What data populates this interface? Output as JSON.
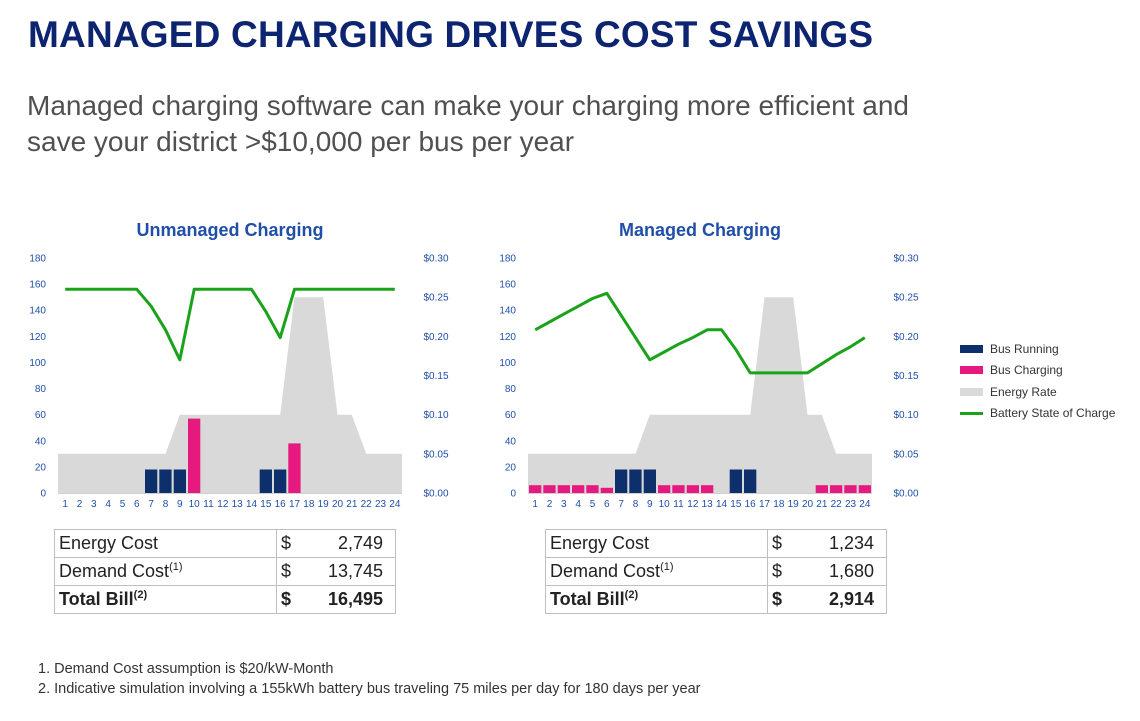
{
  "title": "MANAGED CHARGING DRIVES COST SAVINGS",
  "subtitle": {
    "line1": "Managed charging software can make your charging more efficient and",
    "line2": "save your district >$10,000 per bus per year"
  },
  "legend": [
    {
      "label": "Bus Running",
      "color": "#0d2f6b",
      "kind": "box"
    },
    {
      "label": "Bus Charging",
      "color": "#e6197e",
      "kind": "box"
    },
    {
      "label": "Energy Rate",
      "color": "#d9d9d9",
      "kind": "box"
    },
    {
      "label": "Battery State of Charge",
      "color": "#1aa31a",
      "kind": "line"
    }
  ],
  "chart_data": [
    {
      "type": "bar",
      "title": "Unmanaged Charging",
      "categories": [
        "1",
        "2",
        "3",
        "4",
        "5",
        "6",
        "7",
        "8",
        "9",
        "10",
        "11",
        "12",
        "13",
        "14",
        "15",
        "16",
        "17",
        "18",
        "19",
        "20",
        "21",
        "22",
        "23",
        "24"
      ],
      "y_left": {
        "lim": [
          0,
          180
        ],
        "ticks": [
          "0",
          "20",
          "40",
          "60",
          "80",
          "100",
          "120",
          "140",
          "160",
          "180"
        ]
      },
      "y_right": {
        "lim": [
          0,
          0.3
        ],
        "ticks": [
          "$0.00",
          "$0.05",
          "$0.10",
          "$0.15",
          "$0.20",
          "$0.25",
          "$0.30"
        ]
      },
      "series": [
        {
          "name": "Energy Rate",
          "kind": "area",
          "axis": "left",
          "values": [
            30,
            30,
            30,
            30,
            30,
            30,
            30,
            30,
            60,
            60,
            60,
            60,
            60,
            60,
            60,
            60,
            150,
            150,
            150,
            60,
            60,
            30,
            30,
            30
          ]
        },
        {
          "name": "Bus Running",
          "kind": "bar",
          "axis": "left",
          "values": [
            0,
            0,
            0,
            0,
            0,
            0,
            18,
            18,
            18,
            0,
            0,
            0,
            0,
            0,
            18,
            18,
            0,
            0,
            0,
            0,
            0,
            0,
            0,
            0
          ]
        },
        {
          "name": "Bus Charging",
          "kind": "bar",
          "axis": "left",
          "values": [
            0,
            0,
            0,
            0,
            0,
            0,
            0,
            0,
            0,
            57,
            0,
            0,
            0,
            0,
            0,
            0,
            38,
            0,
            0,
            0,
            0,
            0,
            0,
            0
          ]
        },
        {
          "name": "Battery State of Charge",
          "kind": "line",
          "axis": "left",
          "values": [
            156,
            156,
            156,
            156,
            156,
            156,
            143,
            125,
            102,
            156,
            156,
            156,
            156,
            156,
            139,
            119,
            156,
            156,
            156,
            156,
            156,
            156,
            156,
            156
          ]
        }
      ],
      "grid": false
    },
    {
      "type": "bar",
      "title": "Managed Charging",
      "categories": [
        "1",
        "2",
        "3",
        "4",
        "5",
        "6",
        "7",
        "8",
        "9",
        "10",
        "11",
        "12",
        "13",
        "14",
        "15",
        "16",
        "17",
        "18",
        "19",
        "20",
        "21",
        "22",
        "23",
        "24"
      ],
      "y_left": {
        "lim": [
          0,
          180
        ],
        "ticks": [
          "0",
          "20",
          "40",
          "60",
          "80",
          "100",
          "120",
          "140",
          "160",
          "180"
        ]
      },
      "y_right": {
        "lim": [
          0,
          0.3
        ],
        "ticks": [
          "$0.00",
          "$0.05",
          "$0.10",
          "$0.15",
          "$0.20",
          "$0.25",
          "$0.30"
        ]
      },
      "series": [
        {
          "name": "Energy Rate",
          "kind": "area",
          "axis": "left",
          "values": [
            30,
            30,
            30,
            30,
            30,
            30,
            30,
            30,
            60,
            60,
            60,
            60,
            60,
            60,
            60,
            60,
            150,
            150,
            150,
            60,
            60,
            30,
            30,
            30
          ]
        },
        {
          "name": "Bus Running",
          "kind": "bar",
          "axis": "left",
          "values": [
            0,
            0,
            0,
            0,
            0,
            0,
            18,
            18,
            18,
            0,
            0,
            0,
            0,
            0,
            18,
            18,
            0,
            0,
            0,
            0,
            0,
            0,
            0,
            0
          ]
        },
        {
          "name": "Bus Charging",
          "kind": "bar",
          "axis": "left",
          "values": [
            6,
            6,
            6,
            6,
            6,
            4,
            0,
            0,
            0,
            6,
            6,
            6,
            6,
            0,
            0,
            0,
            0,
            0,
            0,
            0,
            6,
            6,
            6,
            6
          ]
        },
        {
          "name": "Battery State of Charge",
          "kind": "line",
          "axis": "left",
          "values": [
            125,
            131,
            137,
            143,
            149,
            153,
            136,
            119,
            102,
            108,
            114,
            119,
            125,
            125,
            110,
            92,
            92,
            92,
            92,
            92,
            99,
            106,
            112,
            119
          ]
        }
      ],
      "grid": false
    }
  ],
  "tables": {
    "unmanaged": {
      "energy": {
        "label": "Energy Cost",
        "dollar": "$",
        "value": "2,749"
      },
      "demand": {
        "label": "Demand Cost",
        "sup": "(1)",
        "dollar": "$",
        "value": "13,745"
      },
      "total": {
        "label": "Total Bill",
        "sup": "(2)",
        "dollar": "$",
        "value": "16,495"
      }
    },
    "managed": {
      "energy": {
        "label": "Energy Cost",
        "dollar": "$",
        "value": "1,234"
      },
      "demand": {
        "label": "Demand Cost",
        "sup": "(1)",
        "dollar": "$",
        "value": "1,680"
      },
      "total": {
        "label": "Total Bill",
        "sup": "(2)",
        "dollar": "$",
        "value": "2,914"
      }
    }
  },
  "footnotes": {
    "note1": "1. Demand Cost assumption is $20/kW-Month",
    "note2": "2. Indicative simulation involving a 155kWh battery bus traveling 75 miles per day for 180 days per year"
  }
}
